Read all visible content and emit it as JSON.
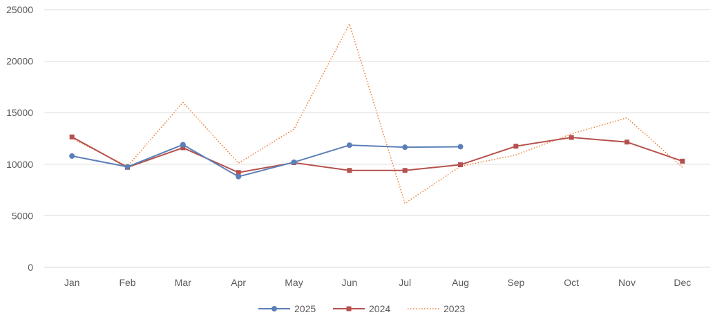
{
  "chart_data": {
    "type": "line",
    "title": "",
    "xlabel": "",
    "ylabel": "",
    "categories": [
      "Jan",
      "Feb",
      "Mar",
      "Apr",
      "May",
      "Jun",
      "Jul",
      "Aug",
      "Sep",
      "Oct",
      "Nov",
      "Dec"
    ],
    "ylim": [
      0,
      25000
    ],
    "yticks": [
      0,
      5000,
      10000,
      15000,
      20000,
      25000
    ],
    "grid": true,
    "legend_position": "bottom",
    "series": [
      {
        "name": "2025",
        "color": "#5b7fb8",
        "style": "solid",
        "marker": "circle",
        "values": [
          10800,
          9750,
          11900,
          8800,
          10200,
          11850,
          11650,
          11700,
          null,
          null,
          null,
          null
        ]
      },
      {
        "name": "2024",
        "color": "#b5504c",
        "style": "solid",
        "marker": "square",
        "values": [
          12650,
          9700,
          11600,
          9200,
          10150,
          9400,
          9400,
          9950,
          11750,
          12600,
          12150,
          10300
        ]
      },
      {
        "name": "2023",
        "color": "#ed7d31",
        "style": "dotted",
        "marker": "none",
        "values": [
          12500,
          9800,
          16000,
          10100,
          13400,
          23600,
          6200,
          9800,
          10900,
          12950,
          14500,
          9700
        ]
      }
    ]
  }
}
